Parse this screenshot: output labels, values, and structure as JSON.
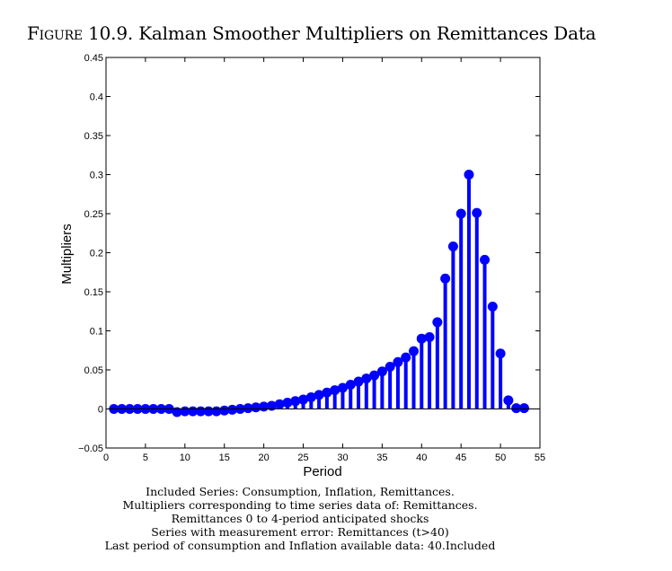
{
  "figure": {
    "label": "Figure",
    "number": "10.9.",
    "title": "Kalman Smoother Multipliers on Remittances Data"
  },
  "notes": [
    "Included Series: Consumption, Inflation, Remittances.",
    "Multipliers corresponding to time series data of: Remittances.",
    "Remittances 0 to 4-period anticipated shocks",
    "Series with measurement error: Remittances (t>40)",
    "Last period of consumption and Inflation available data: 40.Included"
  ],
  "colors": {
    "stem": "#0000ff",
    "axis": "#000000"
  },
  "chart_data": {
    "type": "stem",
    "title": "Kalman Smoother Multipliers on Remittances Data",
    "xlabel": "Period",
    "ylabel": "Multipliers",
    "xlim": [
      0,
      55
    ],
    "ylim": [
      -0.05,
      0.45
    ],
    "xticks": [
      0,
      5,
      10,
      15,
      20,
      25,
      30,
      35,
      40,
      45,
      50,
      55
    ],
    "xtick_labels": [
      "0",
      "5",
      "10",
      "15",
      "20",
      "25",
      "30",
      "35",
      "40",
      "45",
      "50",
      "55"
    ],
    "yticks": [
      -0.05,
      0,
      0.05,
      0.1,
      0.15,
      0.2,
      0.25,
      0.3,
      0.35,
      0.4,
      0.45
    ],
    "ytick_labels": [
      "−0.05",
      "0",
      "0.05",
      "0.1",
      "0.15",
      "0.2",
      "0.25",
      "0.3",
      "0.35",
      "0.4",
      "0.45"
    ],
    "grid": false,
    "baseline": 0,
    "x": [
      1,
      2,
      3,
      4,
      5,
      6,
      7,
      8,
      9,
      10,
      11,
      12,
      13,
      14,
      15,
      16,
      17,
      18,
      19,
      20,
      21,
      22,
      23,
      24,
      25,
      26,
      27,
      28,
      29,
      30,
      31,
      32,
      33,
      34,
      35,
      36,
      37,
      38,
      39,
      40,
      41,
      42,
      43,
      44,
      45,
      46,
      47,
      48,
      49,
      50,
      51,
      52,
      53
    ],
    "values": [
      0.0,
      0.0,
      0.0,
      0.0,
      0.0,
      0.0,
      0.0,
      0.0,
      -0.004,
      -0.003,
      -0.003,
      -0.003,
      -0.003,
      -0.003,
      -0.002,
      -0.001,
      0.0,
      0.001,
      0.002,
      0.003,
      0.004,
      0.006,
      0.008,
      0.01,
      0.012,
      0.015,
      0.018,
      0.021,
      0.024,
      0.027,
      0.031,
      0.035,
      0.039,
      0.043,
      0.048,
      0.054,
      0.06,
      0.066,
      0.074,
      0.09,
      0.092,
      0.111,
      0.167,
      0.208,
      0.25,
      0.3,
      0.251,
      0.191,
      0.131,
      0.071,
      0.011,
      0.001,
      0.001
    ]
  }
}
